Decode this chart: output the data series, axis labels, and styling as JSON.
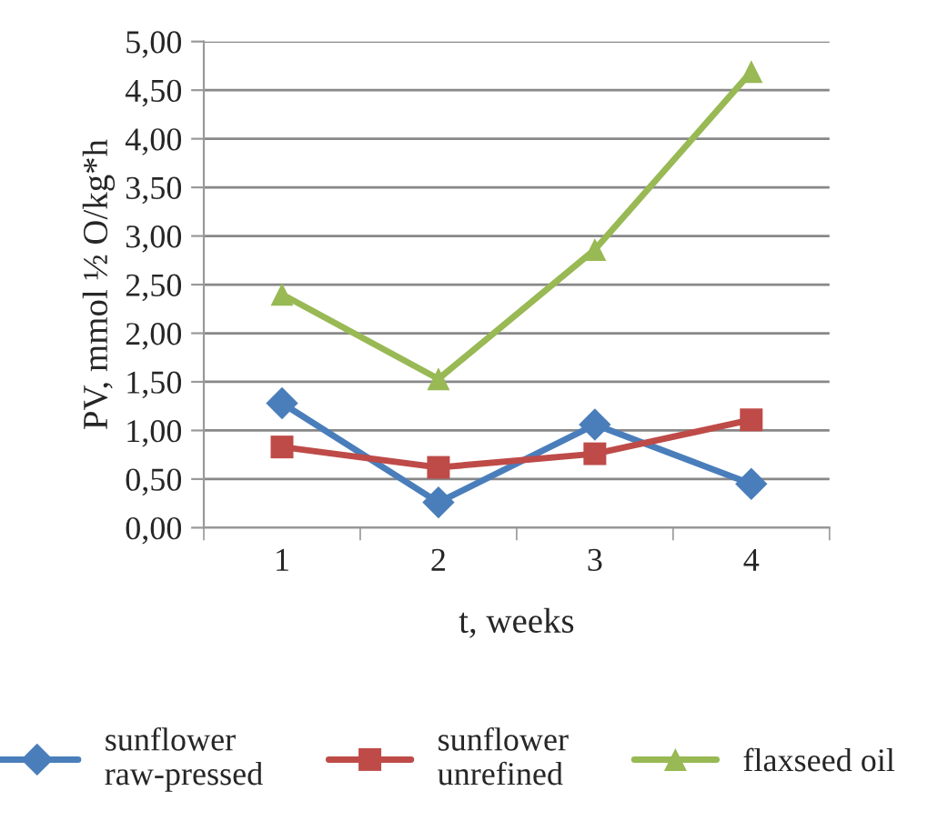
{
  "chart_data": {
    "type": "line",
    "xlabel": "t, weeks",
    "ylabel": "PV, mmol ½ O/kg*h",
    "categories": [
      "1",
      "2",
      "3",
      "4"
    ],
    "series": [
      {
        "name": "sunflower\nraw-pressed",
        "color": "#4a7ebb",
        "marker": "diamond",
        "values": [
          1.28,
          0.26,
          1.06,
          0.45
        ]
      },
      {
        "name": "sunflower\nunrefined",
        "color": "#be4b48",
        "marker": "square",
        "values": [
          0.83,
          0.62,
          0.76,
          1.11
        ]
      },
      {
        "name": "flaxseed oil",
        "color": "#98b954",
        "marker": "triangle",
        "values": [
          2.4,
          1.53,
          2.86,
          4.69
        ]
      }
    ],
    "ylim": [
      0,
      5
    ],
    "yticks": [
      {
        "value": 0,
        "label": "0,00"
      },
      {
        "value": 0.5,
        "label": "0,50"
      },
      {
        "value": 1,
        "label": "1,00"
      },
      {
        "value": 1.5,
        "label": "1,50"
      },
      {
        "value": 2,
        "label": "2,00"
      },
      {
        "value": 2.5,
        "label": "2,50"
      },
      {
        "value": 3,
        "label": "3,00"
      },
      {
        "value": 3.5,
        "label": "3,50"
      },
      {
        "value": 4,
        "label": "4,00"
      },
      {
        "value": 4.5,
        "label": "4,50"
      },
      {
        "value": 5,
        "label": "5,00"
      }
    ],
    "grid": "y",
    "legend": "bottom",
    "line_style": "solid"
  }
}
